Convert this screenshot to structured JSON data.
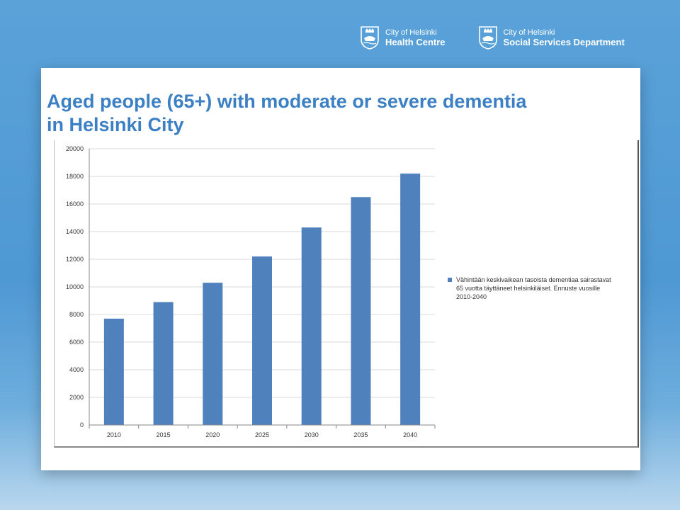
{
  "logos": [
    {
      "small": "City of Helsinki",
      "big": "Health Centre"
    },
    {
      "small": "City of Helsinki",
      "big": "Social Services Department"
    }
  ],
  "title_line1": "Aged people (65+) with moderate or severe dementia",
  "title_line2": "in Helsinki City",
  "colors": {
    "bar": "#4f81bd",
    "title": "#3b7fc4",
    "grid": "#d9d9d9"
  },
  "chart_data": {
    "type": "bar",
    "categories": [
      "2010",
      "2015",
      "2020",
      "2025",
      "2030",
      "2035",
      "2040"
    ],
    "series": [
      {
        "name": "Vähintään keskivaikean tasoista dementiaa sairastavat 65 vuotta täyttäneet helsinkiläiset. Ennuste vuosille 2010-2040",
        "values": [
          7700,
          8900,
          10300,
          12200,
          14300,
          16500,
          18200
        ]
      }
    ],
    "yticks": [
      0,
      2000,
      4000,
      6000,
      8000,
      10000,
      12000,
      14000,
      16000,
      18000,
      20000
    ],
    "ylim": [
      0,
      20000
    ],
    "grid": true,
    "legend_position": "right",
    "legend_lines": [
      "Vähintään keskivaikean tasoista dementiaa sairastavat",
      "65 vuotta täyttäneet helsinkiläiset. Ennuste vuosille",
      "2010-2040"
    ]
  }
}
